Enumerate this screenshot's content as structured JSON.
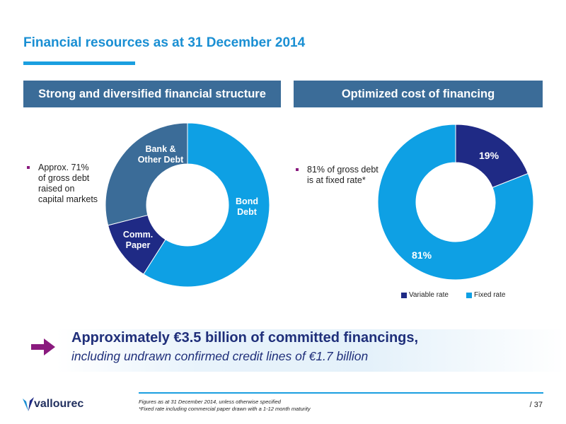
{
  "title": "Financial resources as at 31 December 2014",
  "left_panel": {
    "header": "Strong and diversified financial structure",
    "bullet": "Approx. 71%\nof gross debt\nraised on\ncapital markets"
  },
  "right_panel": {
    "header": "Optimized cost of financing",
    "bullet": "81% of gross debt\nis at fixed rate*"
  },
  "colors": {
    "brand_blue": "#1a8fd3",
    "panel_header": "#3b6c98",
    "bond_debt": "#0ea0e4",
    "bank_debt": "#3b6c98",
    "comm_paper": "#1f2a85",
    "variable_rate": "#1f2a85",
    "fixed_rate": "#0ea0e4",
    "bullet_marker": "#8a1a7e",
    "arrow": "#8a1a7e"
  },
  "chart_data": [
    {
      "type": "pie",
      "variant": "donut",
      "slices": [
        {
          "label": "Bond\nDebt",
          "value": 59,
          "color": "#0ea0e4"
        },
        {
          "label": "Comm.\nPaper",
          "value": 12,
          "color": "#1f2a85"
        },
        {
          "label": "Bank &\nOther Debt",
          "value": 29,
          "color": "#3b6c98"
        }
      ]
    },
    {
      "type": "pie",
      "variant": "donut",
      "slices": [
        {
          "label": "19%",
          "name": "Variable rate",
          "value": 19,
          "color": "#1f2a85"
        },
        {
          "label": "81%",
          "name": "Fixed rate",
          "value": 81,
          "color": "#0ea0e4"
        }
      ],
      "legend": {
        "position": "bottom",
        "items": [
          "Variable rate",
          "Fixed rate"
        ]
      }
    }
  ],
  "banner": {
    "arrow_icon": "right-arrow-icon",
    "main": "Approximately €3.5 billion of committed financings,",
    "sub": "including undrawn confirmed credit lines of €1.7 billion"
  },
  "footer": {
    "note1": "Figures as at 31 December 2014, unless otherwise specified",
    "note2": "*Fixed rate including commercial paper drawn with a 1-12 month maturity",
    "page": "/ 37",
    "logo": "vallourec"
  }
}
